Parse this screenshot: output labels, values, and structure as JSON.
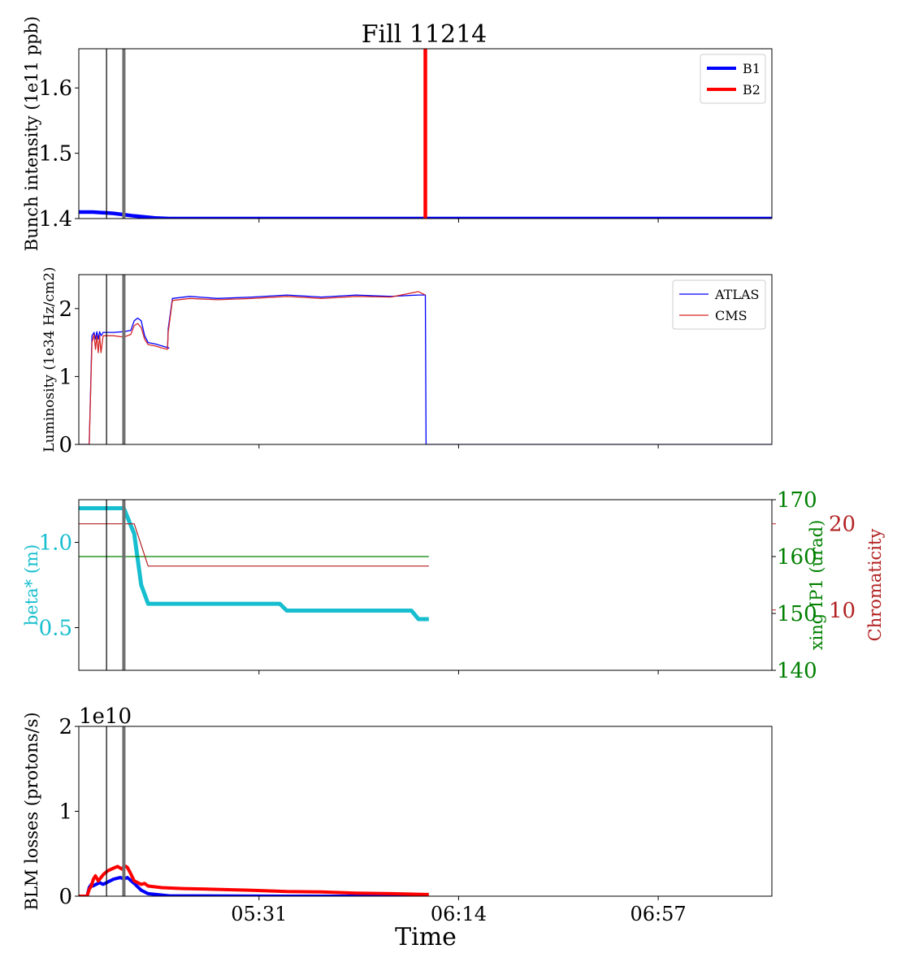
{
  "figure_title": "Fill 11214",
  "xlabel": "Time",
  "x_tick_labels": [
    "05:31",
    "06:14",
    "06:57"
  ],
  "chart_data": [
    {
      "type": "line",
      "panel": "intensity",
      "ylabel": "Bunch intensity (1e11 ppb)",
      "ylim": [
        1.4,
        1.66
      ],
      "yticks": [
        1.4,
        1.5,
        1.6
      ],
      "ytick_labels": [
        "1.4",
        "1.5",
        "1.6"
      ],
      "legend": {
        "position": "top-right",
        "entries": [
          "B1",
          "B2"
        ]
      },
      "series": [
        {
          "name": "B1",
          "color": "#0000ff",
          "points": [
            [
              0.0,
              1.41
            ],
            [
              0.02,
              1.41
            ],
            [
              0.05,
              1.408
            ],
            [
              0.08,
              1.404
            ],
            [
              0.11,
              1.401
            ],
            [
              0.13,
              1.4
            ],
            [
              0.5,
              1.4
            ],
            [
              1.0,
              1.4
            ]
          ]
        },
        {
          "name": "B2",
          "color": "#ff0000",
          "points": [
            [
              0.5,
              1.4
            ],
            [
              0.5,
              1.66
            ]
          ]
        }
      ]
    },
    {
      "type": "line",
      "panel": "luminosity",
      "ylabel": "Luminosity (1e34 Hz/cm2)",
      "ylim": [
        0,
        2.5
      ],
      "yticks": [
        0,
        1,
        2
      ],
      "ytick_labels": [
        "0",
        "1",
        "2"
      ],
      "legend": {
        "position": "top-right",
        "entries": [
          "ATLAS",
          "CMS"
        ]
      },
      "series": [
        {
          "name": "ATLAS",
          "color": "#0000ff",
          "points": [
            [
              0.0,
              0
            ],
            [
              0.015,
              0
            ],
            [
              0.019,
              1.6
            ],
            [
              0.022,
              1.65
            ],
            [
              0.024,
              1.55
            ],
            [
              0.026,
              1.66
            ],
            [
              0.028,
              1.55
            ],
            [
              0.03,
              1.66
            ],
            [
              0.032,
              1.6
            ],
            [
              0.035,
              1.65
            ],
            [
              0.05,
              1.65
            ],
            [
              0.065,
              1.66
            ],
            [
              0.075,
              1.68
            ],
            [
              0.08,
              1.82
            ],
            [
              0.085,
              1.86
            ],
            [
              0.09,
              1.82
            ],
            [
              0.095,
              1.6
            ],
            [
              0.1,
              1.5
            ],
            [
              0.11,
              1.48
            ],
            [
              0.12,
              1.45
            ],
            [
              0.13,
              1.42
            ],
            [
              0.128,
              1.42
            ],
            [
              0.129,
              1.7
            ],
            [
              0.135,
              2.15
            ],
            [
              0.16,
              2.18
            ],
            [
              0.2,
              2.15
            ],
            [
              0.25,
              2.17
            ],
            [
              0.3,
              2.2
            ],
            [
              0.35,
              2.17
            ],
            [
              0.4,
              2.2
            ],
            [
              0.45,
              2.18
            ],
            [
              0.49,
              2.2
            ],
            [
              0.5,
              2.2
            ],
            [
              0.501,
              0
            ],
            [
              1.0,
              0
            ]
          ]
        },
        {
          "name": "CMS",
          "color": "#d62728",
          "points": [
            [
              0.0,
              0
            ],
            [
              0.015,
              0
            ],
            [
              0.019,
              1.5
            ],
            [
              0.022,
              1.62
            ],
            [
              0.024,
              1.4
            ],
            [
              0.026,
              1.6
            ],
            [
              0.028,
              1.35
            ],
            [
              0.03,
              1.6
            ],
            [
              0.032,
              1.35
            ],
            [
              0.035,
              1.6
            ],
            [
              0.05,
              1.6
            ],
            [
              0.065,
              1.58
            ],
            [
              0.075,
              1.62
            ],
            [
              0.08,
              1.75
            ],
            [
              0.085,
              1.78
            ],
            [
              0.09,
              1.72
            ],
            [
              0.095,
              1.55
            ],
            [
              0.1,
              1.47
            ],
            [
              0.11,
              1.45
            ],
            [
              0.12,
              1.42
            ],
            [
              0.128,
              1.4
            ],
            [
              0.129,
              1.65
            ],
            [
              0.135,
              2.12
            ],
            [
              0.16,
              2.15
            ],
            [
              0.2,
              2.13
            ],
            [
              0.25,
              2.15
            ],
            [
              0.3,
              2.18
            ],
            [
              0.35,
              2.15
            ],
            [
              0.4,
              2.18
            ],
            [
              0.45,
              2.17
            ],
            [
              0.49,
              2.25
            ],
            [
              0.5,
              2.2
            ]
          ]
        }
      ]
    },
    {
      "type": "line",
      "panel": "optics",
      "ylabel": "beta* (m)",
      "ylabel_right1": "xing IP1 (urad)",
      "ylabel_right2": "Chromaticity",
      "ylim": [
        0.25,
        1.25
      ],
      "yticks": [
        0.5,
        1.0
      ],
      "ytick_labels": [
        "0.5",
        "1.0"
      ],
      "ylim_right1": [
        140,
        170
      ],
      "yticks_right1": [
        140,
        150,
        160,
        170
      ],
      "ytick_labels_right1": [
        "140",
        "150",
        "160",
        "170"
      ],
      "ylim_right2": [
        3.0,
        22.8
      ],
      "yticks_right2": [
        10,
        20
      ],
      "ytick_labels_right2": [
        "10",
        "20"
      ],
      "series": [
        {
          "name": "beta*",
          "color": "#17becf",
          "axis": "left",
          "points": [
            [
              0.0,
              1.2
            ],
            [
              0.065,
              1.2
            ],
            [
              0.08,
              1.05
            ],
            [
              0.085,
              0.9
            ],
            [
              0.09,
              0.75
            ],
            [
              0.1,
              0.64
            ],
            [
              0.29,
              0.64
            ],
            [
              0.3,
              0.6
            ],
            [
              0.48,
              0.6
            ],
            [
              0.49,
              0.55
            ],
            [
              0.505,
              0.55
            ]
          ]
        },
        {
          "name": "xing IP1",
          "color": "#008000",
          "axis": "right1",
          "points": [
            [
              0.0,
              160
            ],
            [
              0.505,
              160
            ]
          ]
        },
        {
          "name": "Chromaticity",
          "color": "#b22222",
          "axis": "right2",
          "points": [
            [
              0.0,
              20
            ],
            [
              0.08,
              20
            ],
            [
              0.1,
              15.1
            ],
            [
              0.505,
              15.1
            ]
          ]
        }
      ]
    },
    {
      "type": "line",
      "panel": "losses",
      "ylabel": "BLM losses (protons/s)",
      "offset_label": "1e10",
      "ylim": [
        0,
        2
      ],
      "yticks": [
        0,
        1,
        2
      ],
      "ytick_labels": [
        "0",
        "1",
        "2"
      ],
      "series": [
        {
          "name": "BLM B1",
          "color": "#0000ff",
          "points": [
            [
              0.0,
              0
            ],
            [
              0.012,
              0
            ],
            [
              0.015,
              0.1
            ],
            [
              0.018,
              0.14
            ],
            [
              0.02,
              0.12
            ],
            [
              0.025,
              0.14
            ],
            [
              0.03,
              0.16
            ],
            [
              0.035,
              0.14
            ],
            [
              0.045,
              0.18
            ],
            [
              0.05,
              0.2
            ],
            [
              0.06,
              0.22
            ],
            [
              0.065,
              0.2
            ],
            [
              0.07,
              0.22
            ],
            [
              0.08,
              0.15
            ],
            [
              0.09,
              0.07
            ],
            [
              0.1,
              0.03
            ],
            [
              0.13,
              0.005
            ],
            [
              0.3,
              0.0
            ],
            [
              0.5,
              0.0
            ]
          ]
        },
        {
          "name": "BLM B2",
          "color": "#ff0000",
          "points": [
            [
              0.0,
              0
            ],
            [
              0.012,
              0
            ],
            [
              0.015,
              0.08
            ],
            [
              0.018,
              0.12
            ],
            [
              0.021,
              0.2
            ],
            [
              0.024,
              0.24
            ],
            [
              0.028,
              0.18
            ],
            [
              0.032,
              0.22
            ],
            [
              0.036,
              0.26
            ],
            [
              0.042,
              0.3
            ],
            [
              0.05,
              0.33
            ],
            [
              0.056,
              0.35
            ],
            [
              0.062,
              0.32
            ],
            [
              0.066,
              0.36
            ],
            [
              0.07,
              0.34
            ],
            [
              0.074,
              0.28
            ],
            [
              0.08,
              0.18
            ],
            [
              0.09,
              0.14
            ],
            [
              0.095,
              0.15
            ],
            [
              0.1,
              0.12
            ],
            [
              0.12,
              0.1
            ],
            [
              0.15,
              0.09
            ],
            [
              0.2,
              0.08
            ],
            [
              0.25,
              0.07
            ],
            [
              0.3,
              0.055
            ],
            [
              0.35,
              0.05
            ],
            [
              0.4,
              0.035
            ],
            [
              0.45,
              0.03
            ],
            [
              0.5,
              0.02
            ],
            [
              0.505,
              0.02
            ]
          ]
        }
      ]
    }
  ],
  "x_markers": [
    {
      "name": "thin-marker",
      "color": "#000000",
      "x": 0.04
    },
    {
      "name": "thick-marker",
      "color": "#707070",
      "x": 0.065
    }
  ],
  "x_tick_values": [
    0.26,
    0.548,
    0.836
  ]
}
